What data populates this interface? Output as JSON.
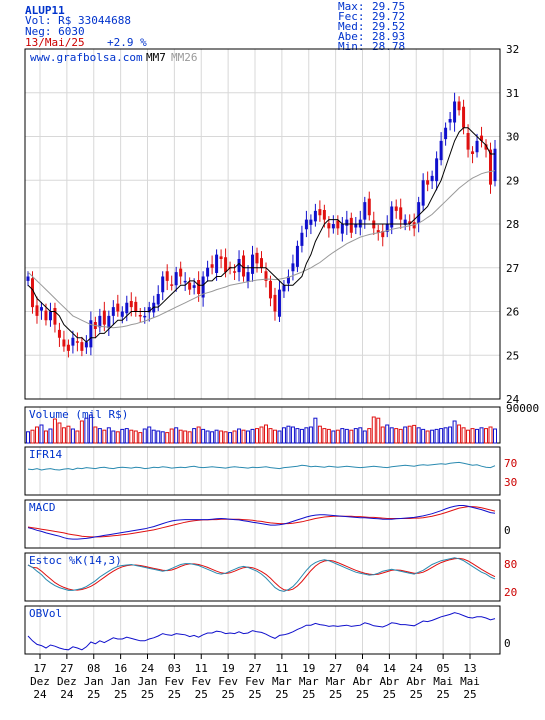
{
  "header": {
    "ticker": "ALUP11",
    "volume_text": "Vol: R$ 33044688",
    "trades_text": "Neg: 6030",
    "date": "13/Mai/25",
    "change": "+2.9 %",
    "stats": [
      {
        "label": "Max:",
        "value": "29.75"
      },
      {
        "label": "Fec:",
        "value": "29.72"
      },
      {
        "label": "Med:",
        "value": "29.52"
      },
      {
        "label": "Abe:",
        "value": "28.93"
      },
      {
        "label": "Min:",
        "value": "28.78"
      }
    ]
  },
  "watermark": "www.grafbolsa.com",
  "legend": {
    "mm7": "MM7",
    "mm26": "MM26"
  },
  "panels": {
    "volume": {
      "label": "Volume (mil R$)",
      "tick": "90000"
    },
    "ifr": {
      "label": "IFR14",
      "ticks": [
        "70",
        "30"
      ]
    },
    "macd": {
      "label": "MACD",
      "tick": "0"
    },
    "stoch": {
      "label": "Estoc %K(14,3)",
      "ticks": [
        "80",
        "20"
      ]
    },
    "obv": {
      "label": "OBVol",
      "tick": "0"
    }
  },
  "colors": {
    "up": "#1010cc",
    "down": "#e01010",
    "mm7": "#000000",
    "mm26": "#999999",
    "ifr": "#2a8ab0",
    "macd": "#1010cc",
    "signal": "#e01010",
    "obv": "#1010cc",
    "text": "#0033cc",
    "red_text": "#cc0000"
  },
  "chart_data": {
    "type": "candlestick",
    "price_axis": {
      "ylim": [
        24,
        32
      ],
      "ticks": [
        "24",
        "25",
        "26",
        "27",
        "28",
        "29",
        "30",
        "31",
        "32"
      ]
    },
    "x_ticks": [
      {
        "day": "17",
        "month": "Dez",
        "year": "24"
      },
      {
        "day": "27",
        "month": "Dez",
        "year": "24"
      },
      {
        "day": "08",
        "month": "Jan",
        "year": "25"
      },
      {
        "day": "16",
        "month": "Jan",
        "year": "25"
      },
      {
        "day": "24",
        "month": "Jan",
        "year": "25"
      },
      {
        "day": "03",
        "month": "Fev",
        "year": "25"
      },
      {
        "day": "11",
        "month": "Fev",
        "year": "25"
      },
      {
        "day": "19",
        "month": "Fev",
        "year": "25"
      },
      {
        "day": "27",
        "month": "Fev",
        "year": "25"
      },
      {
        "day": "11",
        "month": "Mar",
        "year": "25"
      },
      {
        "day": "19",
        "month": "Mar",
        "year": "25"
      },
      {
        "day": "27",
        "month": "Mar",
        "year": "25"
      },
      {
        "day": "04",
        "month": "Abr",
        "year": "25"
      },
      {
        "day": "14",
        "month": "Abr",
        "year": "25"
      },
      {
        "day": "24",
        "month": "Abr",
        "year": "25"
      },
      {
        "day": "05",
        "month": "Mai",
        "year": "25"
      },
      {
        "day": "13",
        "month": "Mai",
        "year": "25"
      }
    ],
    "close": [
      26.8,
      26.1,
      25.9,
      26.1,
      25.8,
      26.0,
      25.7,
      25.4,
      25.2,
      25.1,
      25.4,
      25.3,
      25.1,
      25.3,
      25.8,
      25.6,
      25.9,
      25.7,
      25.9,
      26.1,
      26.0,
      26.0,
      26.2,
      26.1,
      26.0,
      25.9,
      25.9,
      26.1,
      26.2,
      26.4,
      26.8,
      26.7,
      26.6,
      26.9,
      26.8,
      26.7,
      26.5,
      26.6,
      26.4,
      26.8,
      27.0,
      27.0,
      27.3,
      27.2,
      26.9,
      27.0,
      26.9,
      27.2,
      26.8,
      26.9,
      27.3,
      27.1,
      27.0,
      26.7,
      26.3,
      26.0,
      26.5,
      26.6,
      26.8,
      27.1,
      27.5,
      27.8,
      28.1,
      28.1,
      28.3,
      28.2,
      28.1,
      27.9,
      28.0,
      27.9,
      28.0,
      28.1,
      27.8,
      28.0,
      28.1,
      28.5,
      28.2,
      27.9,
      27.8,
      27.7,
      28.0,
      28.4,
      28.3,
      28.1,
      28.1,
      28.0,
      27.9,
      28.5,
      29.0,
      28.9,
      29.1,
      29.5,
      29.9,
      30.2,
      30.4,
      30.8,
      30.6,
      30.2,
      29.7,
      29.6,
      29.9,
      29.9,
      29.7,
      28.9,
      29.72
    ],
    "mm7": [
      26.6,
      26.5,
      26.3,
      26.2,
      26.1,
      26.0,
      26.0,
      25.9,
      25.7,
      25.6,
      25.5,
      25.4,
      25.4,
      25.3,
      25.4,
      25.4,
      25.5,
      25.5,
      25.6,
      25.7,
      25.8,
      25.8,
      25.9,
      26.0,
      26.0,
      26.0,
      26.0,
      26.0,
      26.1,
      26.1,
      26.2,
      26.3,
      26.4,
      26.5,
      26.6,
      26.6,
      26.7,
      26.7,
      26.6,
      26.6,
      26.7,
      26.7,
      26.8,
      26.8,
      26.9,
      27.0,
      27.0,
      27.1,
      27.0,
      27.0,
      27.0,
      27.0,
      27.0,
      27.0,
      26.9,
      26.8,
      26.7,
      26.6,
      26.6,
      26.6,
      26.7,
      26.8,
      27.1,
      27.3,
      27.6,
      27.8,
      28.0,
      28.1,
      28.1,
      28.1,
      28.0,
      28.0,
      28.0,
      28.0,
      28.0,
      28.0,
      28.0,
      28.0,
      28.0,
      28.0,
      28.0,
      28.0,
      28.0,
      28.0,
      28.0,
      28.0,
      28.1,
      28.2,
      28.3,
      28.4,
      28.6,
      28.8,
      29.0,
      29.3,
      29.6,
      29.9,
      30.1,
      30.2,
      30.2,
      30.1,
      30.0,
      29.9,
      29.8,
      29.6,
      29.6
    ],
    "mm26": [
      26.9,
      26.8,
      26.7,
      26.6,
      26.5,
      26.4,
      26.3,
      26.2,
      26.1,
      26.0,
      25.9,
      25.85,
      25.8,
      25.75,
      25.7,
      25.68,
      25.66,
      25.65,
      25.64,
      25.63,
      25.64,
      25.65,
      25.67,
      25.7,
      25.72,
      25.75,
      25.78,
      25.82,
      25.86,
      25.9,
      25.95,
      26.0,
      26.05,
      26.1,
      26.15,
      26.2,
      26.25,
      26.3,
      26.35,
      26.4,
      26.43,
      26.46,
      26.5,
      26.53,
      26.56,
      26.6,
      26.62,
      26.64,
      26.66,
      26.68,
      26.7,
      26.72,
      26.73,
      26.74,
      26.74,
      26.73,
      26.74,
      26.76,
      26.78,
      26.82,
      26.86,
      26.9,
      26.95,
      27.0,
      27.06,
      27.12,
      27.2,
      27.28,
      27.35,
      27.42,
      27.48,
      27.55,
      27.6,
      27.65,
      27.7,
      27.73,
      27.76,
      27.78,
      27.8,
      27.82,
      27.85,
      27.88,
      27.9,
      27.92,
      27.94,
      27.96,
      27.98,
      28.02,
      28.08,
      28.15,
      28.22,
      28.32,
      28.42,
      28.52,
      28.62,
      28.72,
      28.82,
      28.9,
      28.98,
      29.05,
      29.1,
      29.15,
      29.18,
      29.2,
      29.22
    ],
    "ifr14": [
      54,
      53,
      55,
      52,
      54,
      55,
      53,
      52,
      54,
      55,
      53,
      56,
      55,
      57,
      56,
      55,
      57,
      58,
      56,
      55,
      57,
      58,
      57,
      56,
      58,
      57,
      55,
      56,
      58,
      57,
      59,
      58,
      56,
      57,
      58,
      57,
      59,
      60,
      58,
      57,
      58,
      59,
      58,
      57,
      56,
      58,
      59,
      58,
      57,
      56,
      58,
      57,
      58,
      59,
      57,
      56,
      55,
      57,
      58,
      59,
      60,
      62,
      61,
      59,
      60,
      59,
      58,
      60,
      59,
      58,
      59,
      60,
      59,
      58,
      57,
      58,
      59,
      60,
      59,
      58,
      57,
      59,
      60,
      61,
      62,
      61,
      60,
      62,
      63,
      62,
      63,
      64,
      65,
      64,
      66,
      67,
      68,
      66,
      64,
      62,
      63,
      60,
      58,
      57,
      61
    ],
    "macd": [
      -0.05,
      -0.08,
      -0.12,
      -0.15,
      -0.19,
      -0.22,
      -0.25,
      -0.28,
      -0.32,
      -0.35,
      -0.36,
      -0.36,
      -0.35,
      -0.34,
      -0.32,
      -0.3,
      -0.28,
      -0.26,
      -0.24,
      -0.22,
      -0.2,
      -0.18,
      -0.16,
      -0.14,
      -0.12,
      -0.1,
      -0.08,
      -0.05,
      -0.02,
      0.02,
      0.06,
      0.1,
      0.13,
      0.15,
      0.16,
      0.17,
      0.17,
      0.17,
      0.17,
      0.17,
      0.17,
      0.18,
      0.19,
      0.2,
      0.19,
      0.18,
      0.17,
      0.16,
      0.14,
      0.12,
      0.1,
      0.08,
      0.06,
      0.04,
      0.02,
      0.02,
      0.03,
      0.05,
      0.08,
      0.12,
      0.16,
      0.2,
      0.24,
      0.27,
      0.29,
      0.3,
      0.3,
      0.29,
      0.28,
      0.27,
      0.26,
      0.25,
      0.24,
      0.23,
      0.22,
      0.22,
      0.21,
      0.2,
      0.19,
      0.18,
      0.18,
      0.18,
      0.19,
      0.2,
      0.21,
      0.22,
      0.23,
      0.25,
      0.27,
      0.3,
      0.33,
      0.37,
      0.41,
      0.46,
      0.5,
      0.53,
      0.55,
      0.55,
      0.53,
      0.5,
      0.47,
      0.44,
      0.4,
      0.36,
      0.34
    ],
    "macd_signal": [
      -0.03,
      -0.05,
      -0.07,
      -0.09,
      -0.11,
      -0.13,
      -0.15,
      -0.17,
      -0.19,
      -0.22,
      -0.24,
      -0.26,
      -0.28,
      -0.29,
      -0.3,
      -0.3,
      -0.3,
      -0.29,
      -0.28,
      -0.27,
      -0.26,
      -0.24,
      -0.23,
      -0.21,
      -0.19,
      -0.17,
      -0.15,
      -0.13,
      -0.11,
      -0.08,
      -0.05,
      -0.02,
      0.01,
      0.04,
      0.07,
      0.1,
      0.12,
      0.14,
      0.15,
      0.16,
      0.16,
      0.17,
      0.17,
      0.18,
      0.18,
      0.18,
      0.18,
      0.18,
      0.17,
      0.16,
      0.15,
      0.13,
      0.12,
      0.1,
      0.08,
      0.07,
      0.06,
      0.06,
      0.06,
      0.07,
      0.09,
      0.11,
      0.14,
      0.17,
      0.2,
      0.22,
      0.24,
      0.25,
      0.26,
      0.26,
      0.26,
      0.26,
      0.26,
      0.25,
      0.25,
      0.24,
      0.23,
      0.23,
      0.22,
      0.21,
      0.2,
      0.2,
      0.2,
      0.2,
      0.2,
      0.2,
      0.21,
      0.21,
      0.22,
      0.24,
      0.26,
      0.29,
      0.32,
      0.36,
      0.4,
      0.44,
      0.48,
      0.5,
      0.52,
      0.52,
      0.51,
      0.49,
      0.46,
      0.43,
      0.4
    ],
    "stoch_k": [
      75,
      70,
      62,
      55,
      45,
      38,
      32,
      28,
      25,
      22,
      22,
      24,
      26,
      30,
      36,
      42,
      50,
      56,
      62,
      68,
      72,
      74,
      75,
      76,
      74,
      72,
      70,
      68,
      66,
      64,
      62,
      64,
      68,
      72,
      76,
      78,
      78,
      76,
      74,
      70,
      66,
      62,
      58,
      56,
      58,
      62,
      66,
      70,
      72,
      70,
      66,
      62,
      56,
      48,
      38,
      28,
      22,
      20,
      24,
      30,
      40,
      52,
      64,
      74,
      80,
      84,
      86,
      84,
      80,
      76,
      72,
      68,
      64,
      60,
      58,
      56,
      54,
      55,
      58,
      62,
      64,
      66,
      64,
      62,
      60,
      58,
      56,
      60,
      64,
      70,
      76,
      80,
      84,
      86,
      88,
      90,
      88,
      84,
      78,
      72,
      66,
      60,
      56,
      50,
      46
    ],
    "volume": [
      28000,
      32000,
      40000,
      45000,
      30000,
      35000,
      60000,
      50000,
      38000,
      42000,
      35000,
      30000,
      55000,
      62000,
      70000,
      40000,
      36000,
      32000,
      38000,
      30000,
      28000,
      34000,
      36000,
      32000,
      30000,
      26000,
      35000,
      40000,
      32000,
      30000,
      28000,
      26000,
      35000,
      38000,
      32000,
      30000,
      28000,
      36000,
      40000,
      34000,
      30000,
      28000,
      32000,
      30000,
      28000,
      26000,
      30000,
      35000,
      32000,
      30000,
      34000,
      36000,
      40000,
      45000,
      36000,
      32000,
      30000,
      38000,
      42000,
      40000,
      36000,
      34000,
      38000,
      40000,
      62000,
      42000,
      36000,
      34000,
      30000,
      32000,
      36000,
      34000,
      32000,
      36000,
      38000,
      30000,
      36000,
      65000,
      62000,
      40000,
      45000,
      38000,
      36000,
      34000,
      40000,
      42000,
      44000,
      38000,
      34000,
      30000,
      32000,
      34000,
      36000,
      38000,
      40000,
      55000,
      45000,
      38000,
      32000,
      36000,
      34000,
      38000,
      36000,
      40000,
      35000
    ],
    "obv": [
      -10,
      -18,
      -24,
      -26,
      -30,
      -25,
      -27,
      -30,
      -32,
      -33,
      -28,
      -30,
      -33,
      -28,
      -20,
      -23,
      -18,
      -21,
      -17,
      -13,
      -15,
      -15,
      -12,
      -14,
      -16,
      -18,
      -18,
      -15,
      -13,
      -10,
      -6,
      -8,
      -9,
      -6,
      -7,
      -8,
      -11,
      -9,
      -12,
      -8,
      -5,
      -5,
      -2,
      -3,
      -6,
      -5,
      -6,
      -3,
      -6,
      -5,
      -1,
      -3,
      -4,
      -7,
      -11,
      -14,
      -9,
      -8,
      -6,
      -3,
      1,
      4,
      8,
      8,
      11,
      9,
      8,
      6,
      7,
      6,
      7,
      8,
      6,
      7,
      8,
      12,
      10,
      7,
      6,
      5,
      8,
      12,
      11,
      9,
      9,
      8,
      7,
      11,
      15,
      14,
      16,
      19,
      22,
      24,
      26,
      29,
      27,
      24,
      21,
      20,
      22,
      22,
      20,
      17,
      19
    ]
  }
}
